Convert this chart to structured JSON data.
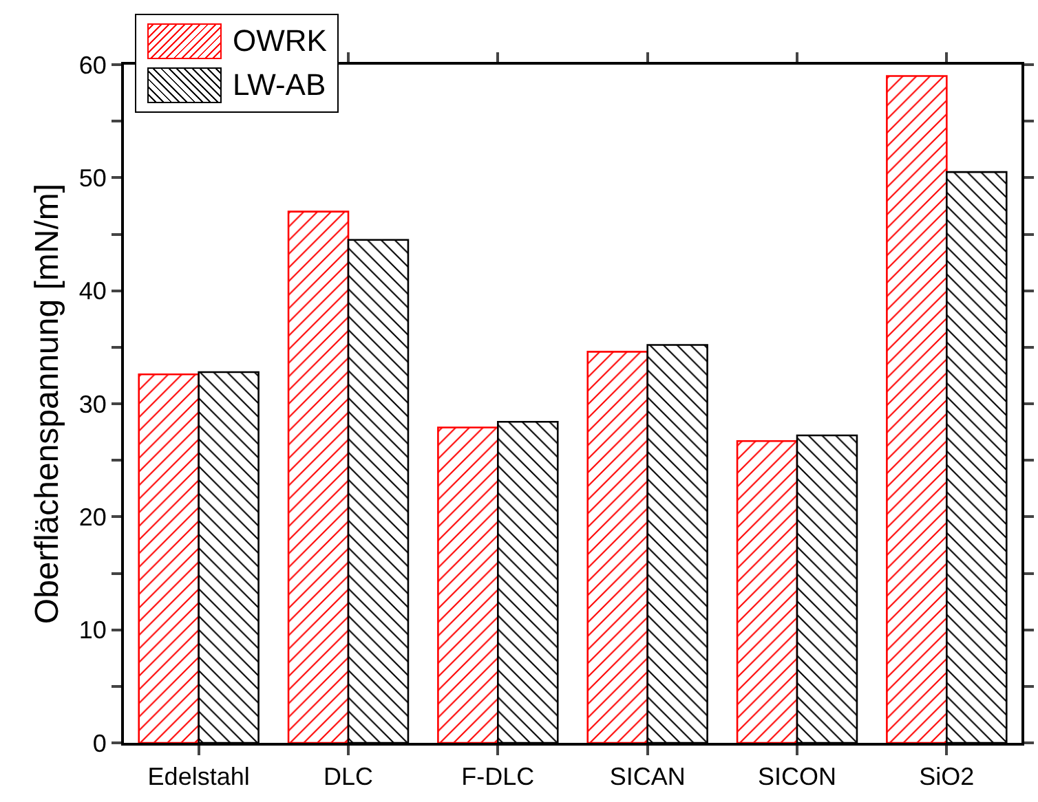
{
  "chart_data": {
    "type": "bar",
    "ylabel": "Oberflächenspannung [mN/m]",
    "categories": [
      "Edelstahl",
      "DLC",
      "F-DLC",
      "SICAN",
      "SICON",
      "SiO2"
    ],
    "series": [
      {
        "name": "OWRK",
        "color": "#ff0000",
        "values": [
          32.6,
          47.0,
          27.9,
          34.6,
          26.7,
          59.0
        ]
      },
      {
        "name": "LW-AB",
        "color": "#000000",
        "values": [
          32.8,
          44.5,
          28.4,
          35.2,
          27.2,
          50.5
        ]
      }
    ],
    "ylim": [
      0,
      60
    ],
    "yticks": [
      0,
      {
        "value": 5,
        "label": null
      },
      10,
      {
        "value": 15,
        "label": null
      },
      20,
      {
        "value": 25,
        "label": null
      },
      30,
      {
        "value": 35,
        "label": null
      },
      40,
      {
        "value": 45,
        "label": null
      },
      50,
      {
        "value": 55,
        "label": null
      },
      60
    ],
    "grid": false,
    "legend": "top left"
  }
}
